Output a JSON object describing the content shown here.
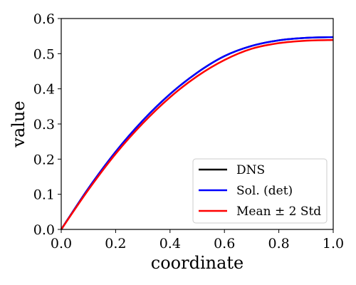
{
  "chart_data": {
    "type": "line",
    "xlabel": "coordinate",
    "ylabel": "value",
    "xlim": [
      0.0,
      1.0
    ],
    "ylim": [
      0.0,
      0.6
    ],
    "xticks": [
      "0.0",
      "0.2",
      "0.4",
      "0.6",
      "0.8",
      "1.0"
    ],
    "yticks": [
      "0.0",
      "0.1",
      "0.2",
      "0.3",
      "0.4",
      "0.5",
      "0.6"
    ],
    "grid": false,
    "legend_position": "lower-right",
    "x": [
      0.0,
      0.1,
      0.2,
      0.3,
      0.4,
      0.5,
      0.6,
      0.7,
      0.8,
      0.9,
      1.0
    ],
    "series": [
      {
        "name": "DNS",
        "color": "#000000",
        "values": [
          0.0,
          0.117,
          0.221,
          0.31,
          0.385,
          0.446,
          0.493,
          0.522,
          0.538,
          0.545,
          0.547
        ]
      },
      {
        "name": "Sol. (det)",
        "color": "#0000ff",
        "values": [
          0.0,
          0.117,
          0.221,
          0.31,
          0.385,
          0.446,
          0.493,
          0.522,
          0.538,
          0.545,
          0.547
        ]
      },
      {
        "name": "Mean ± 2 Std",
        "color": "#ff0000",
        "values": [
          0.0,
          0.113,
          0.215,
          0.302,
          0.376,
          0.436,
          0.482,
          0.514,
          0.53,
          0.537,
          0.539
        ]
      }
    ]
  }
}
